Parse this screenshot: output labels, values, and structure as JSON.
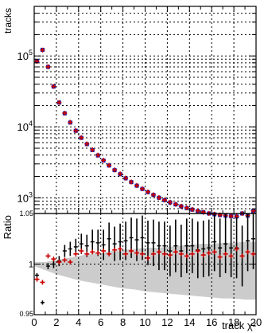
{
  "chart_data": [
    {
      "type": "scatter",
      "panel": "main",
      "ylabel": "tracks",
      "yscale": "log",
      "xlim": [
        0,
        20
      ],
      "ylim": [
        600,
        500000
      ],
      "grid": true,
      "y_tick_labels": [
        {
          "value": 1000,
          "base": "10",
          "exp": "3"
        },
        {
          "value": 10000,
          "base": "10",
          "exp": "4"
        },
        {
          "value": 100000,
          "base": "10",
          "exp": "5"
        }
      ],
      "series": [
        {
          "color": "#1a1aa6",
          "x": [
            0.25,
            0.75,
            1.25,
            1.75,
            2.25,
            2.75,
            3.25,
            3.75,
            4.25,
            4.75,
            5.25,
            5.75,
            6.25,
            6.75,
            7.25,
            7.75,
            8.25,
            8.75,
            9.25,
            9.75,
            10.25,
            10.75,
            11.25,
            11.75,
            12.25,
            12.75,
            13.25,
            13.75,
            14.25,
            14.75,
            15.25,
            15.75,
            16.25,
            16.75,
            17.25,
            17.75,
            18.25,
            18.75,
            19.25,
            19.75
          ],
          "y": [
            85000,
            122000,
            70000,
            37000,
            22000,
            15500,
            11500,
            8800,
            7000,
            5700,
            4700,
            3950,
            3350,
            2850,
            2450,
            2150,
            1880,
            1660,
            1480,
            1330,
            1200,
            1095,
            1000,
            925,
            860,
            805,
            755,
            715,
            680,
            650,
            625,
            600,
            585,
            570,
            560,
            550,
            545,
            600,
            560,
            650
          ]
        },
        {
          "color": "#cc0000",
          "x": [
            0.25,
            0.75,
            1.25,
            1.75,
            2.25,
            2.75,
            3.25,
            3.75,
            4.25,
            4.75,
            5.25,
            5.75,
            6.25,
            6.75,
            7.25,
            7.75,
            8.25,
            8.75,
            9.25,
            9.75,
            10.25,
            10.75,
            11.25,
            11.75,
            12.25,
            12.75,
            13.25,
            13.75,
            14.25,
            14.75,
            15.25,
            15.75,
            16.25,
            16.75,
            17.25,
            17.75,
            18.25,
            18.75,
            19.25,
            19.75
          ],
          "y": [
            84000,
            121000,
            70500,
            37200,
            22100,
            15600,
            11600,
            8850,
            7050,
            5750,
            4750,
            3990,
            3380,
            2870,
            2470,
            2170,
            1890,
            1670,
            1490,
            1340,
            1210,
            1100,
            1005,
            930,
            865,
            810,
            760,
            720,
            684,
            653,
            627,
            602,
            588,
            573,
            562,
            552,
            548,
            602,
            562,
            652
          ]
        }
      ]
    },
    {
      "type": "scatter",
      "panel": "ratio",
      "xlabel": "track χ²",
      "ylabel": "Ratio",
      "xlim": [
        0,
        20
      ],
      "ylim": [
        0.95,
        1.05
      ],
      "grid": true,
      "x_tick_labels": [
        "0",
        "2",
        "4",
        "6",
        "8",
        "10",
        "12",
        "14",
        "16",
        "18",
        "20"
      ],
      "y_tick_labels": [
        "0.95",
        "1",
        "1.05"
      ],
      "band": {
        "color": "#cccccc",
        "x": [
          0,
          1,
          2,
          3,
          4,
          5,
          6,
          7,
          8,
          9,
          10,
          11,
          12,
          13,
          14,
          15,
          16,
          17,
          18,
          19,
          20
        ],
        "lower": [
          0.998,
          0.994,
          0.99,
          0.987,
          0.984,
          0.982,
          0.98,
          0.978,
          0.976,
          0.975,
          0.973,
          0.972,
          0.971,
          0.97,
          0.969,
          0.968,
          0.967,
          0.966,
          0.966,
          0.965,
          0.965
        ],
        "upper": [
          1.002,
          1.002,
          1.004,
          1.006,
          1.008,
          1.01,
          1.011,
          1.013,
          1.014,
          1.015,
          1.016,
          1.016,
          1.017,
          1.018,
          1.019,
          1.02,
          1.02,
          1.021,
          1.021,
          1.022,
          1.022
        ]
      },
      "series": [
        {
          "color": "#000000",
          "x": [
            0.25,
            0.75,
            1.25,
            1.75,
            2.25,
            2.75,
            3.25,
            3.75,
            4.25,
            4.75,
            5.25,
            5.75,
            6.25,
            6.75,
            7.25,
            7.75,
            8.25,
            8.75,
            9.25,
            9.75,
            10.25,
            10.75,
            11.25,
            11.75,
            12.25,
            12.75,
            13.25,
            13.75,
            14.25,
            14.75,
            15.25,
            15.75,
            16.25,
            16.75,
            17.25,
            17.75,
            18.25,
            18.75,
            19.25,
            19.75
          ],
          "y": [
            0.989,
            0.962,
            0.998,
            1.0,
            1.003,
            1.013,
            1.015,
            1.017,
            1.02,
            1.018,
            1.022,
            1.021,
            1.019,
            1.025,
            1.02,
            1.022,
            1.023,
            1.026,
            1.024,
            1.026,
            1.021,
            1.021,
            1.018,
            1.018,
            1.013,
            1.018,
            1.013,
            1.018,
            1.018,
            1.014,
            1.015,
            1.016,
            1.022,
            1.016,
            1.02,
            1.016,
            1.016,
            1.008,
            1.023,
            1.025
          ],
          "err": [
            0.002,
            0.002,
            0.003,
            0.004,
            0.005,
            0.006,
            0.007,
            0.008,
            0.01,
            0.011,
            0.012,
            0.013,
            0.015,
            0.016,
            0.017,
            0.018,
            0.019,
            0.02,
            0.021,
            0.022,
            0.022,
            0.023,
            0.024,
            0.024,
            0.025,
            0.026,
            0.026,
            0.027,
            0.027,
            0.028,
            0.028,
            0.028,
            0.029,
            0.029,
            0.029,
            0.029,
            0.03,
            0.03,
            0.03,
            0.03
          ]
        },
        {
          "color": "#cc0000",
          "x": [
            0.25,
            0.75,
            1.25,
            1.75,
            2.25,
            2.75,
            3.25,
            3.75,
            4.25,
            4.75,
            5.25,
            5.75,
            6.25,
            6.75,
            7.25,
            7.75,
            8.25,
            8.75,
            9.25,
            9.75,
            10.25,
            10.75,
            11.25,
            11.75,
            12.25,
            12.75,
            13.25,
            13.75,
            14.25,
            14.75,
            15.25,
            15.75,
            16.25,
            16.75,
            17.25,
            17.75,
            18.25,
            18.75,
            19.25,
            19.75
          ],
          "y": [
            0.985,
            0.982,
            1.008,
            1.005,
            1.002,
            1.004,
            1.002,
            1.01,
            1.013,
            1.01,
            1.012,
            1.011,
            1.013,
            1.01,
            1.014,
            1.015,
            1.01,
            1.013,
            1.011,
            1.01,
            1.006,
            1.01,
            1.012,
            1.01,
            1.009,
            1.012,
            1.01,
            1.008,
            1.01,
            1.013,
            1.009,
            1.011,
            1.012,
            1.007,
            1.01,
            1.008,
            1.015,
            1.008,
            1.012,
            1.01
          ]
        }
      ]
    }
  ]
}
